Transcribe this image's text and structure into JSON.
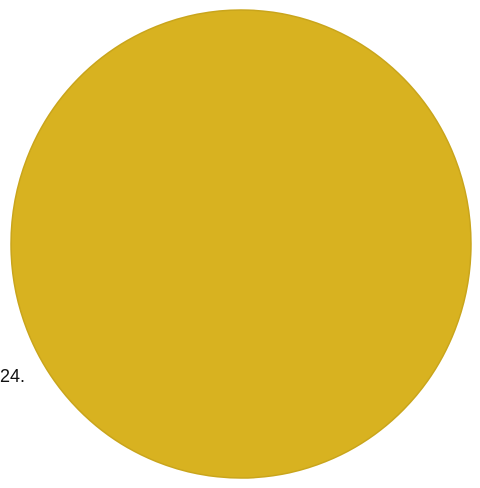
{
  "fragment_text": "24.",
  "disc": {
    "fill_color": "#D8B220",
    "edge_color": "#C9A51C",
    "shape": "circle"
  }
}
